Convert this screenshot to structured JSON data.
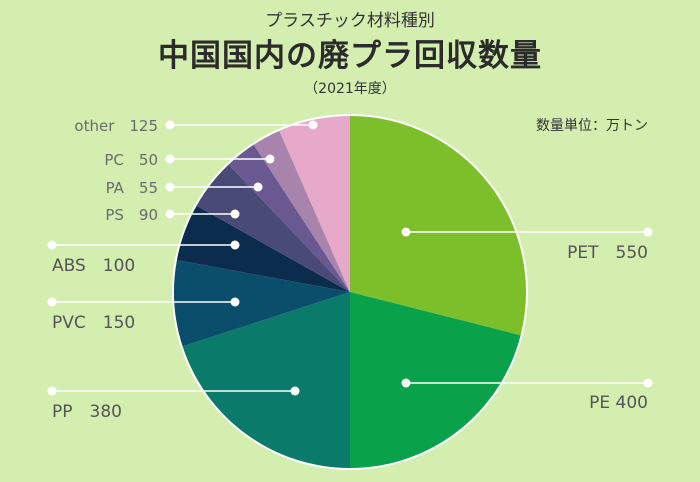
{
  "header": {
    "subtitle": "プラスチック材料種別",
    "title": "中国国内の廃プラ回収数量",
    "year": "（2021年度）",
    "unit": "数量単位：万トン"
  },
  "chart_data": {
    "type": "pie",
    "title": "中国国内の廃プラ回収数量",
    "subtitle": "プラスチック材料種別",
    "unit": "万トン",
    "start": "12 o'clock",
    "direction": "clockwise",
    "slices": [
      {
        "name": "PET",
        "value": 550,
        "label": "PET　550",
        "color": "#7cbf2a",
        "label_color": "#555555"
      },
      {
        "name": "PE",
        "value": 400,
        "label": "PE 400",
        "color": "#09a14a",
        "label_color": "#555555"
      },
      {
        "name": "PP",
        "value": 380,
        "label": "PP　380",
        "color": "#0a7a6a",
        "label_color": "#555555"
      },
      {
        "name": "PVC",
        "value": 150,
        "label": "PVC　150",
        "color": "#0b4e6b",
        "label_color": "#555555"
      },
      {
        "name": "ABS",
        "value": 100,
        "label": "ABS　100",
        "color": "#0b2c4c",
        "label_color": "#555555"
      },
      {
        "name": "PS",
        "value": 90,
        "label": "PS　90",
        "color": "#494a78",
        "label_color": "#6b6b6b"
      },
      {
        "name": "PA",
        "value": 55,
        "label": "PA　55",
        "color": "#6a5891",
        "label_color": "#6b6b6b"
      },
      {
        "name": "PC",
        "value": 50,
        "label": "PC　50",
        "color": "#a883ac",
        "label_color": "#6b6b6b"
      },
      {
        "name": "other",
        "value": 125,
        "label": "other　125",
        "color": "#e6a9ca",
        "label_color": "#6b6b6b"
      }
    ]
  }
}
